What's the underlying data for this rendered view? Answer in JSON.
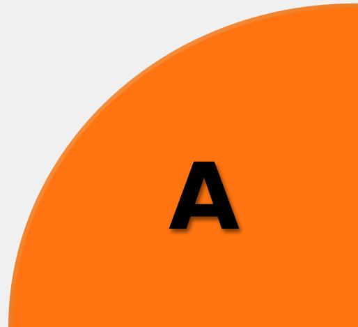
{
  "shape": {
    "label": "A"
  }
}
